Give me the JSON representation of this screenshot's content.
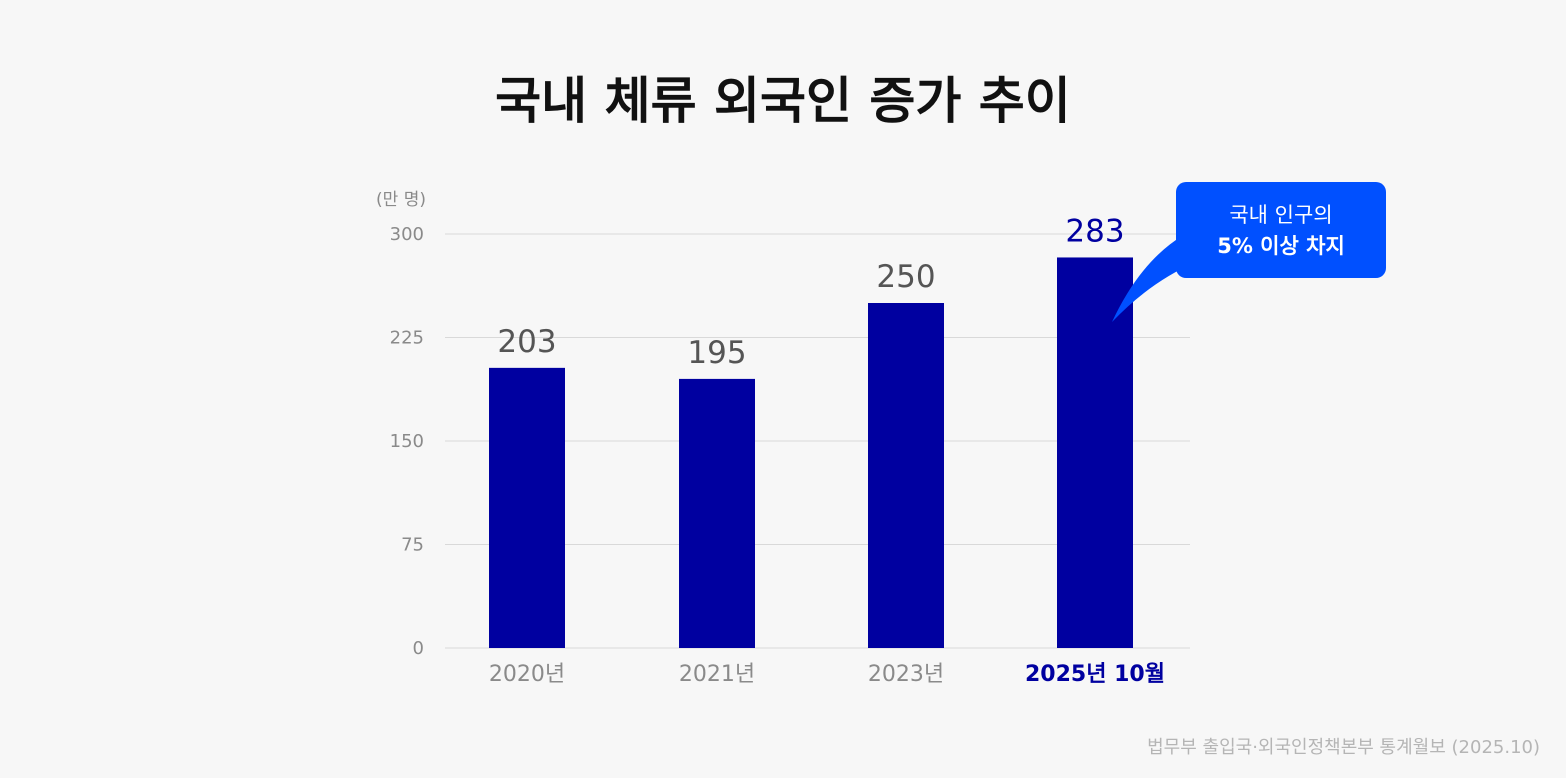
{
  "chart_data": {
    "type": "bar",
    "title": "국내 체류 외국인 증가 추이",
    "ylabel": "(만 명)",
    "categories": [
      "2020년",
      "2021년",
      "2023년",
      "2025년 10월"
    ],
    "values": [
      203,
      195,
      250,
      283
    ],
    "value_labels": [
      "203",
      "195",
      "250",
      "283"
    ],
    "highlight_index": 3,
    "ylim": [
      0,
      300
    ],
    "yticks": [
      "0",
      "75",
      "150",
      "225",
      "300"
    ],
    "ytick_values": [
      0,
      75,
      150,
      225,
      300
    ],
    "grid": true,
    "annotation": {
      "target_index": 3,
      "lines": [
        "국내 인구의",
        "5% 이상 차지"
      ]
    },
    "source": "법무부 출입국·외국인정책본부 통계월보 (2025.10)"
  },
  "colors": {
    "background": "#f7f7f7",
    "bar": "#0000a0",
    "highlight_text": "#0000a0",
    "callout": "#0050ff"
  }
}
